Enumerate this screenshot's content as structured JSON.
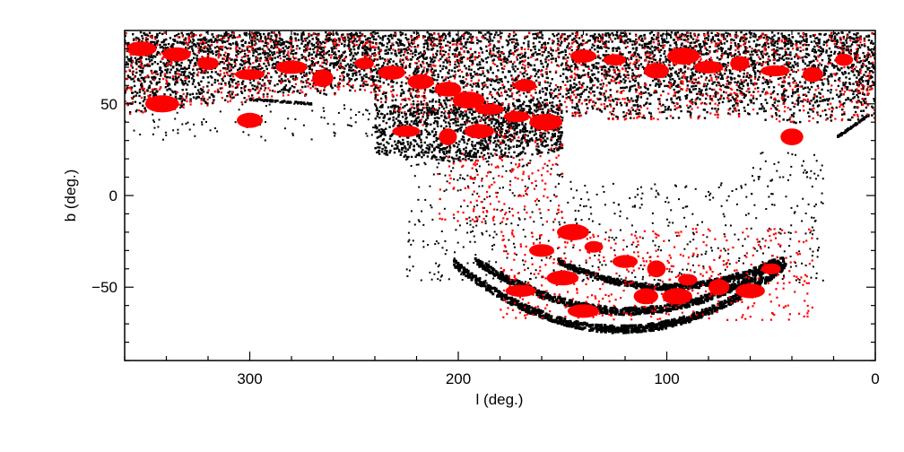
{
  "chart_data": {
    "type": "scatter",
    "title": "",
    "xlabel": "l (deg.)",
    "ylabel": "b (deg.)",
    "xlim": [
      360,
      0
    ],
    "ylim": [
      -90,
      90
    ],
    "x_reversed": true,
    "grid": false,
    "legend": "none",
    "xticks": [
      300,
      200,
      100,
      0
    ],
    "xtick_labels": [
      "300",
      "200",
      "100",
      "0"
    ],
    "yticks": [
      50,
      0,
      -50
    ],
    "ytick_labels": [
      "50",
      "0",
      "−50"
    ],
    "series": [
      {
        "color": "#000000",
        "marker": "small-square",
        "regions": [
          {
            "kind": "north-cap-band",
            "l_range": [
              0,
              360
            ],
            "b_range": [
              60,
              88
            ]
          },
          {
            "kind": "north-cap-lower",
            "l_range": [
              0,
              240
            ],
            "b_range": [
              40,
              62
            ]
          },
          {
            "kind": "north-wedge",
            "l_range": [
              150,
              245
            ],
            "b_range": [
              20,
              48
            ]
          },
          {
            "kind": "scattered-mid",
            "l_range": [
              30,
              220
            ],
            "b_range": [
              -45,
              20
            ]
          },
          {
            "kind": "southern-arc",
            "l_center": 120,
            "l_halfwidth": 80,
            "b_center": -63,
            "b_depth": 12
          },
          {
            "kind": "southern-arc",
            "l_center": 105,
            "l_halfwidth": 55,
            "b_center": -44,
            "b_depth": 8
          }
        ]
      },
      {
        "color": "#ff0000",
        "marker": "small-square + filled-ellipse",
        "regions": [
          {
            "kind": "north-cap-scatter",
            "l_range": [
              0,
              360
            ],
            "b_range": [
              35,
              88
            ]
          },
          {
            "kind": "plume",
            "l_range": [
              150,
              210
            ],
            "b_range": [
              -15,
              25
            ]
          },
          {
            "kind": "southern-clusters",
            "l_range": [
              30,
              180
            ],
            "b_range": [
              -68,
              -15
            ]
          }
        ],
        "blobs": [
          {
            "l": 352,
            "b": 80
          },
          {
            "l": 335,
            "b": 77
          },
          {
            "l": 320,
            "b": 72
          },
          {
            "l": 300,
            "b": 66
          },
          {
            "l": 280,
            "b": 70
          },
          {
            "l": 265,
            "b": 64
          },
          {
            "l": 245,
            "b": 72
          },
          {
            "l": 232,
            "b": 67
          },
          {
            "l": 218,
            "b": 62
          },
          {
            "l": 205,
            "b": 58
          },
          {
            "l": 195,
            "b": 52
          },
          {
            "l": 185,
            "b": 47
          },
          {
            "l": 172,
            "b": 43
          },
          {
            "l": 158,
            "b": 40
          },
          {
            "l": 140,
            "b": 76
          },
          {
            "l": 125,
            "b": 74
          },
          {
            "l": 105,
            "b": 68
          },
          {
            "l": 92,
            "b": 76
          },
          {
            "l": 80,
            "b": 70
          },
          {
            "l": 65,
            "b": 72
          },
          {
            "l": 48,
            "b": 68
          },
          {
            "l": 30,
            "b": 66
          },
          {
            "l": 15,
            "b": 74
          },
          {
            "l": 342,
            "b": 50
          },
          {
            "l": 300,
            "b": 41
          },
          {
            "l": 225,
            "b": 35
          },
          {
            "l": 205,
            "b": 32
          },
          {
            "l": 40,
            "b": 32
          },
          {
            "l": 190,
            "b": 35
          },
          {
            "l": 168,
            "b": 60
          },
          {
            "l": 135,
            "b": -28
          },
          {
            "l": 120,
            "b": -36
          },
          {
            "l": 105,
            "b": -40
          },
          {
            "l": 90,
            "b": -46
          },
          {
            "l": 75,
            "b": -50
          },
          {
            "l": 60,
            "b": -52
          },
          {
            "l": 150,
            "b": -45
          },
          {
            "l": 140,
            "b": -63
          },
          {
            "l": 110,
            "b": -55
          },
          {
            "l": 170,
            "b": -52
          },
          {
            "l": 95,
            "b": -55
          },
          {
            "l": 160,
            "b": -30
          },
          {
            "l": 145,
            "b": -20
          },
          {
            "l": 50,
            "b": -40
          }
        ]
      }
    ]
  }
}
